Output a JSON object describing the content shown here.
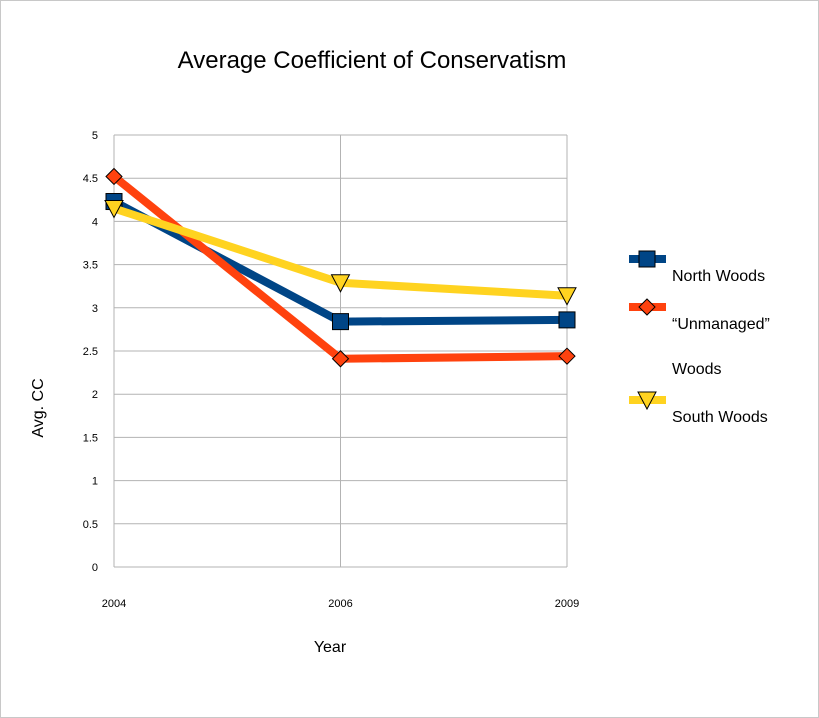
{
  "chart_data": {
    "type": "line",
    "title": "Average Coefficient of Conservatism",
    "xlabel": "Year",
    "ylabel": "Avg. CC",
    "categories": [
      "2004",
      "2006",
      "2009"
    ],
    "ylim": [
      0,
      5
    ],
    "yticks": [
      "0",
      "0.5",
      "1",
      "1.5",
      "2",
      "2.5",
      "3",
      "3.5",
      "4",
      "4.5",
      "5"
    ],
    "grid": true,
    "legend_position": "right",
    "series": [
      {
        "name": "North Woods",
        "values": [
          4.23,
          2.84,
          2.86
        ],
        "color": "#004586",
        "marker": "square"
      },
      {
        "name": "“Unmanaged” Woods",
        "legend_lines": [
          "“Unmanaged”",
          "Woods"
        ],
        "values": [
          4.52,
          2.41,
          2.44
        ],
        "color": "#ff420e",
        "marker": "diamond"
      },
      {
        "name": "South Woods",
        "values": [
          4.15,
          3.29,
          3.14
        ],
        "color": "#ffd320",
        "marker": "triangle-down"
      }
    ]
  }
}
